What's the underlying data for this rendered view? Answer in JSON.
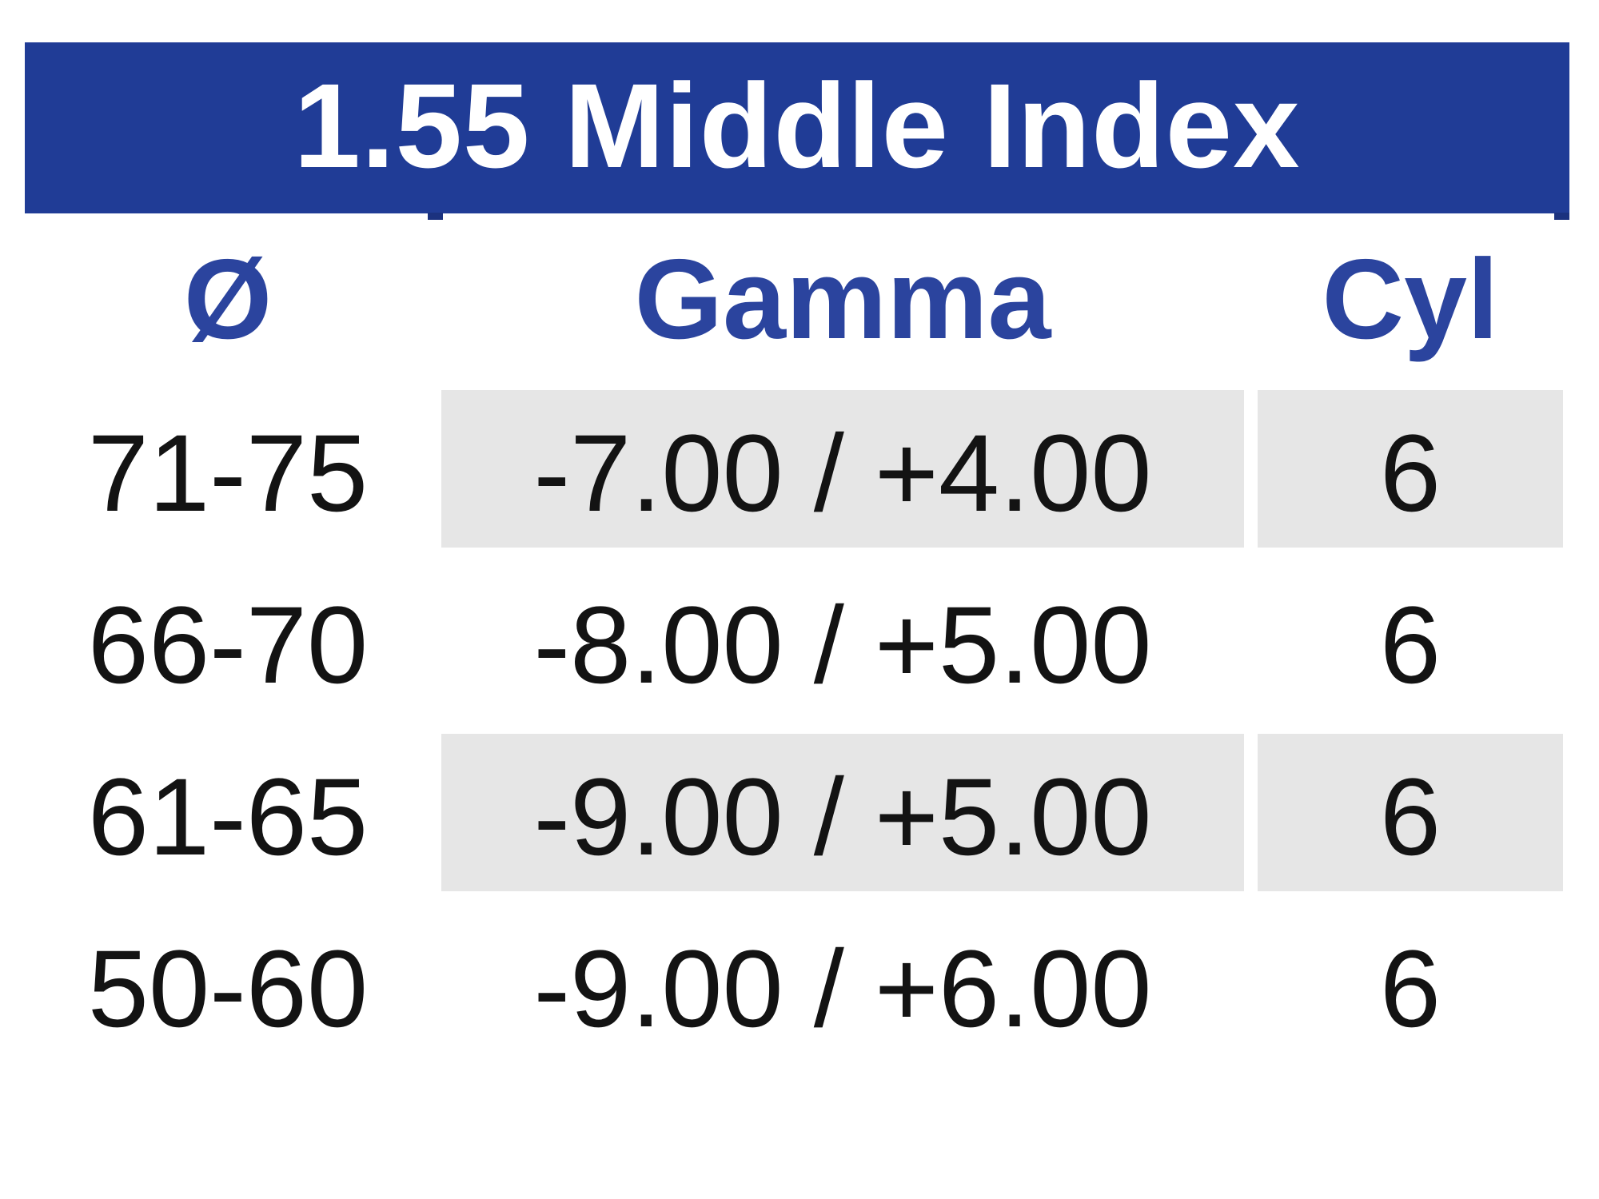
{
  "title": "1.55 Middle Index",
  "columns": [
    "Ø",
    "Gamma",
    "Cyl"
  ],
  "rows": [
    {
      "diameter": "71-75",
      "gamma": "-7.00 / +4.00",
      "cyl": "6",
      "shaded": true
    },
    {
      "diameter": "66-70",
      "gamma": "-8.00 / +5.00",
      "cyl": "6",
      "shaded": false
    },
    {
      "diameter": "61-65",
      "gamma": "-9.00 / +5.00",
      "cyl": "6",
      "shaded": true
    },
    {
      "diameter": "50-60",
      "gamma": "-9.00 / +6.00",
      "cyl": "6",
      "shaded": false
    }
  ],
  "colors": {
    "banner_blue": "#203C96",
    "header_text_blue": "#2B449E",
    "row_shade_gray": "#E6E6E6",
    "title_text": "#FFFFFF",
    "body_text": "#131313"
  },
  "chart_data": {
    "type": "table",
    "title": "1.55 Middle Index",
    "columns": [
      "Ø",
      "Gamma",
      "Cyl"
    ],
    "rows": [
      [
        "71-75",
        "-7.00 / +4.00",
        "6"
      ],
      [
        "66-70",
        "-8.00 / +5.00",
        "6"
      ],
      [
        "61-65",
        "-9.00 / +5.00",
        "6"
      ],
      [
        "50-60",
        "-9.00 / +6.00",
        "6"
      ]
    ],
    "shaded_row_indices": [
      0,
      2
    ],
    "layout_hints": "shading applies only to Gamma and Cyl columns; header banner white-on-blue; column headers blue bold"
  }
}
